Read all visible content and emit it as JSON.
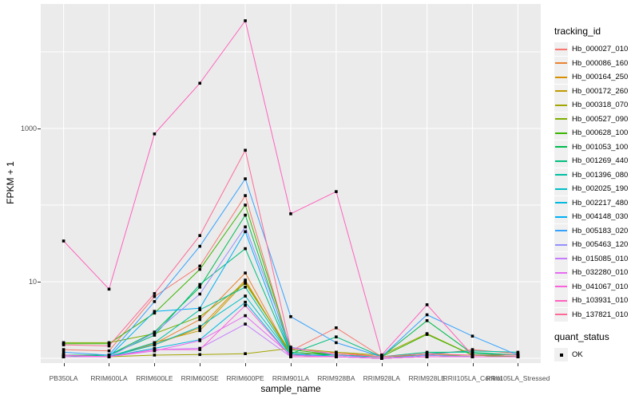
{
  "figure": {
    "background": "#FFFFFF",
    "panel_background": "#EBEBEB",
    "gridline_color": "#FFFFFF",
    "tick_color": "#333333",
    "tick_text_color": "#4D4D4D",
    "point_color": "#000000"
  },
  "legend": {
    "tracking_title": "tracking_id",
    "quant_title": "quant_status",
    "quant_items": [
      "OK"
    ]
  },
  "chart_data": {
    "type": "line",
    "title": "",
    "xlabel": "sample_name",
    "ylabel": "FPKM + 1",
    "y_scale": "log10",
    "ylim": [
      1,
      40000
    ],
    "grid": true,
    "legend_position": "right",
    "point_marker": "black-square",
    "quant_status": "OK",
    "y_axis_ticks": [
      {
        "label": "1000",
        "value": 1000
      },
      {
        "label": "10",
        "value": 10
      }
    ],
    "y_gridline_values": [
      1,
      10,
      100,
      1000,
      10000
    ],
    "categories": [
      "PB350LA",
      "RRIM600LA",
      "RRIM600LE",
      "RRIM600SE",
      "RRIM600PE",
      "RRIM901LA",
      "RRIM928BA",
      "RRIM928LA",
      "RRIM928LE",
      "RRII105LA_Control",
      "RRII105LA_Stressed"
    ],
    "series": [
      {
        "name": "Hb_000027_010",
        "color": "#F8766D",
        "values": [
          1.3,
          1.25,
          6.4,
          16,
          133,
          1.25,
          2.5,
          1.05,
          1.1,
          1.3,
          1.15
        ]
      },
      {
        "name": "Hb_000086_160",
        "color": "#EA8331",
        "values": [
          1.05,
          1.05,
          1.55,
          3.2,
          13,
          1.1,
          1.2,
          1.05,
          1.1,
          1.05,
          1.05
        ]
      },
      {
        "name": "Hb_000164_250",
        "color": "#D89000",
        "values": [
          1.05,
          1.05,
          1.5,
          2.5,
          10.5,
          1.1,
          1.05,
          1.0,
          1.05,
          1.05,
          1.05
        ]
      },
      {
        "name": "Hb_000172_260",
        "color": "#C09B00",
        "values": [
          1.1,
          1.05,
          1.6,
          2.3,
          10.0,
          1.15,
          1.05,
          1.0,
          1.05,
          1.05,
          1.05
        ]
      },
      {
        "name": "Hb_000318_070",
        "color": "#A3A500",
        "values": [
          1.05,
          1.05,
          1.1,
          1.12,
          1.15,
          1.35,
          1.2,
          1.1,
          2.1,
          1.1,
          1.05
        ]
      },
      {
        "name": "Hb_000527_090",
        "color": "#7CAE00",
        "values": [
          1.6,
          1.6,
          2.1,
          3.5,
          9.5,
          1.2,
          1.1,
          1.05,
          1.1,
          1.1,
          1.05
        ]
      },
      {
        "name": "Hb_000628_100",
        "color": "#39B600",
        "values": [
          1.55,
          1.55,
          3.9,
          14.5,
          100,
          1.3,
          1.1,
          1.05,
          2.05,
          1.1,
          1.05
        ]
      },
      {
        "name": "Hb_001053_100",
        "color": "#00BB4E",
        "values": [
          1.1,
          1.1,
          2.2,
          8.5,
          74,
          1.2,
          1.1,
          1.05,
          3.1,
          1.15,
          1.1
        ]
      },
      {
        "name": "Hb_001269_440",
        "color": "#00BF7D",
        "values": [
          1.05,
          1.1,
          2.0,
          9.2,
          27,
          1.15,
          1.9,
          1.05,
          1.2,
          1.2,
          1.1
        ]
      },
      {
        "name": "Hb_001396_080",
        "color": "#00C1A3",
        "values": [
          1.05,
          1.05,
          1.6,
          4.3,
          8.5,
          1.1,
          1.1,
          1.05,
          1.15,
          1.25,
          1.2
        ]
      },
      {
        "name": "Hb_002025_190",
        "color": "#00BFC4",
        "values": [
          1.05,
          1.05,
          1.5,
          2.6,
          6.5,
          1.1,
          1.05,
          1.0,
          1.1,
          1.05,
          1.05
        ]
      },
      {
        "name": "Hb_002217_480",
        "color": "#00BAE0",
        "values": [
          1.1,
          1.05,
          1.35,
          1.75,
          5.4,
          1.05,
          1.05,
          1.0,
          1.05,
          1.05,
          1.05
        ]
      },
      {
        "name": "Hb_004148_030",
        "color": "#00B0F6",
        "values": [
          1.05,
          1.05,
          4.1,
          4.5,
          45,
          1.15,
          1.05,
          1.0,
          1.1,
          1.05,
          1.05
        ]
      },
      {
        "name": "Hb_005183_020",
        "color": "#35A2FF",
        "values": [
          1.2,
          1.1,
          5.5,
          29,
          220,
          3.5,
          1.6,
          1.05,
          3.7,
          1.95,
          1.1
        ]
      },
      {
        "name": "Hb_005463_120",
        "color": "#9590FF",
        "values": [
          1.05,
          1.05,
          2.15,
          6.9,
          52,
          1.4,
          1.1,
          1.0,
          1.1,
          1.05,
          1.05
        ]
      },
      {
        "name": "Hb_015085_010",
        "color": "#C77CFF",
        "values": [
          1.05,
          1.05,
          1.3,
          1.35,
          2.8,
          1.05,
          1.05,
          1.0,
          1.05,
          1.05,
          1.05
        ]
      },
      {
        "name": "Hb_032280_010",
        "color": "#E76BF3",
        "values": [
          1.05,
          1.05,
          1.25,
          1.7,
          3.6,
          1.1,
          1.05,
          1.0,
          1.05,
          1.05,
          1.05
        ]
      },
      {
        "name": "Hb_041067_010",
        "color": "#FA62DB",
        "values": [
          1.1,
          1.05,
          1.3,
          1.3,
          4.9,
          1.05,
          1.05,
          1.0,
          1.05,
          1.05,
          1.05
        ]
      },
      {
        "name": "Hb_103931_010",
        "color": "#FF62BC",
        "values": [
          34,
          8,
          850,
          3900,
          25500,
          77,
          150,
          1.1,
          5.0,
          1.1,
          1.1
        ]
      },
      {
        "name": "Hb_137821_010",
        "color": "#FF6A98",
        "values": [
          1.5,
          1.45,
          7.0,
          40,
          520,
          1.35,
          1.15,
          1.05,
          1.15,
          1.1,
          1.1
        ]
      }
    ]
  }
}
